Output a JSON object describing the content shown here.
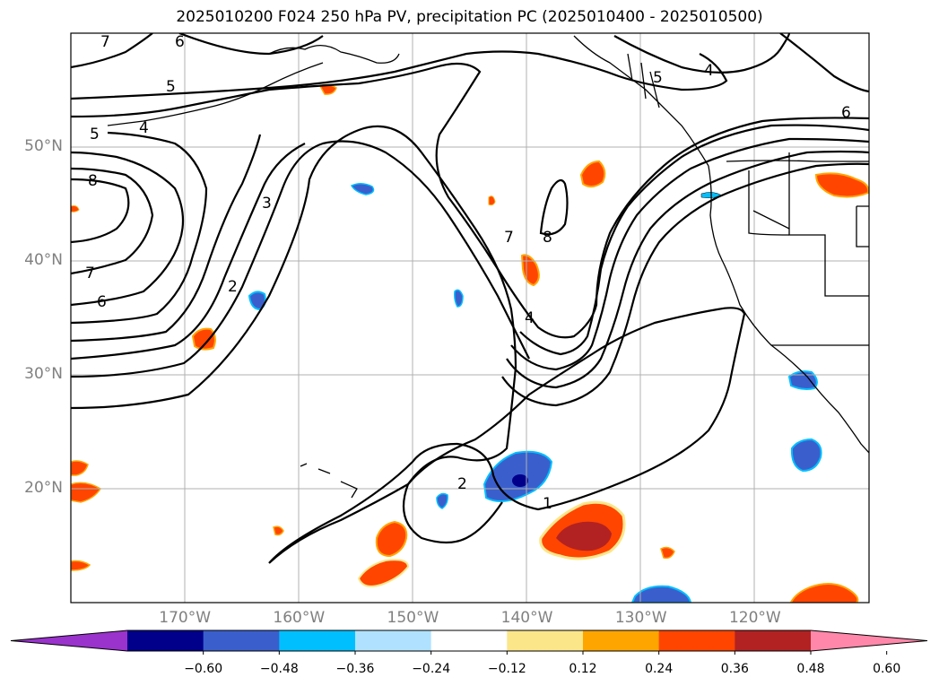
{
  "title": "2025010200 F024 250 hPa PV, precipitation PC (2025010400 - 2025010500)",
  "map": {
    "lat_ticks": [
      {
        "lat": 50,
        "label": "50°N"
      },
      {
        "lat": 40,
        "label": "40°N"
      },
      {
        "lat": 30,
        "label": "30°N"
      },
      {
        "lat": 20,
        "label": "20°N"
      }
    ],
    "lon_ticks": [
      {
        "lon": -170,
        "label": "170°W"
      },
      {
        "lon": -160,
        "label": "160°W"
      },
      {
        "lon": -150,
        "label": "150°W"
      },
      {
        "lon": -140,
        "label": "140°W"
      },
      {
        "lon": -130,
        "label": "130°W"
      },
      {
        "lon": -120,
        "label": "120°W"
      }
    ],
    "lon_range": [
      -180,
      -110
    ],
    "lat_range": [
      10,
      60
    ],
    "grid": true,
    "pv_contour_labels": [
      "1",
      "2",
      "2",
      "3",
      "4",
      "4",
      "5",
      "5",
      "5",
      "6",
      "6",
      "6",
      "7",
      "7",
      "8",
      "8"
    ]
  },
  "colorbar": {
    "ticks": [
      "−0.60",
      "−0.48",
      "−0.36",
      "−0.24",
      "−0.12",
      "0.12",
      "0.24",
      "0.36",
      "0.48",
      "0.60"
    ],
    "colors": [
      "#9933cc",
      "#00008b",
      "#3a5fcd",
      "#00bfff",
      "#b0e2ff",
      "#ffffff",
      "#fbe68a",
      "#ffa500",
      "#ff4500",
      "#b22222",
      "#ff88aa"
    ]
  }
}
